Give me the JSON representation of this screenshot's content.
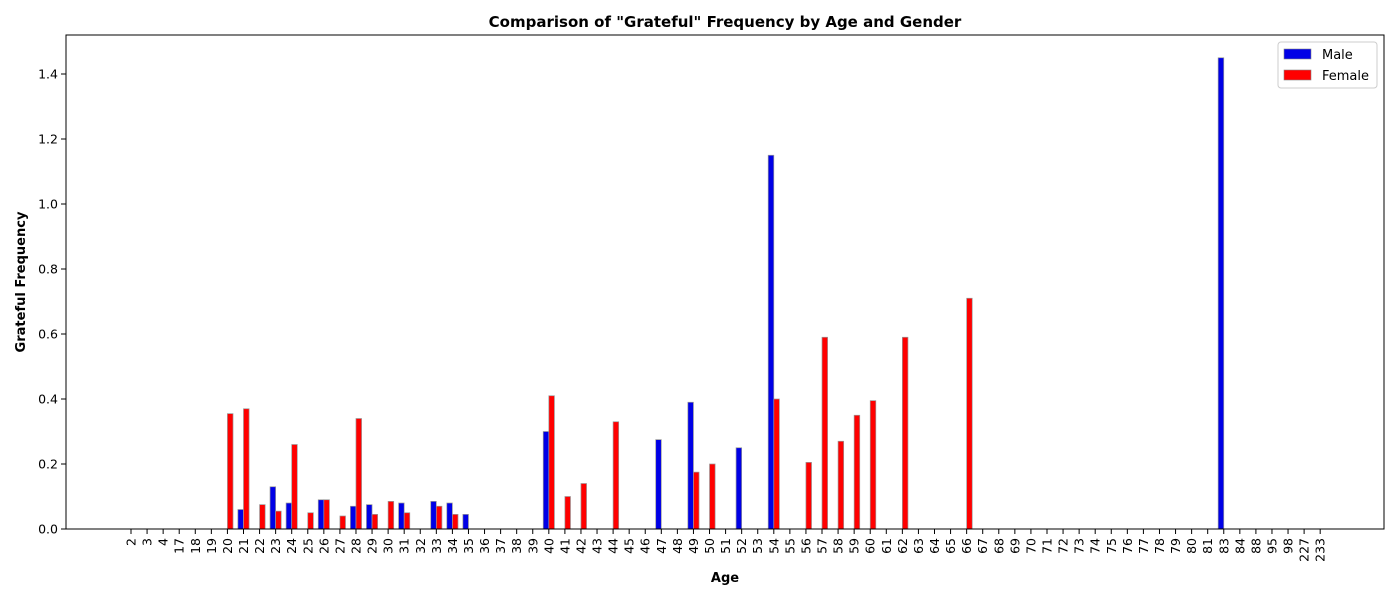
{
  "chart_data": {
    "type": "bar",
    "title": "Comparison of \"Grateful\" Frequency by Age and Gender",
    "xlabel": "Age",
    "ylabel": "Grateful Frequency",
    "ylim": [
      0,
      1.52
    ],
    "yticks": [
      "0.0",
      "0.2",
      "0.4",
      "0.6",
      "0.8",
      "1.0",
      "1.2",
      "1.4"
    ],
    "legend_position": "top-right",
    "grid": false,
    "categories": [
      "2",
      "3",
      "4",
      "17",
      "18",
      "19",
      "20",
      "21",
      "22",
      "23",
      "24",
      "25",
      "26",
      "27",
      "28",
      "29",
      "30",
      "31",
      "32",
      "33",
      "34",
      "35",
      "36",
      "37",
      "38",
      "39",
      "40",
      "41",
      "42",
      "43",
      "44",
      "45",
      "46",
      "47",
      "48",
      "49",
      "50",
      "51",
      "52",
      "53",
      "54",
      "55",
      "56",
      "57",
      "58",
      "59",
      "60",
      "61",
      "62",
      "63",
      "64",
      "65",
      "66",
      "67",
      "68",
      "69",
      "70",
      "71",
      "72",
      "73",
      "74",
      "75",
      "76",
      "77",
      "78",
      "79",
      "80",
      "81",
      "83",
      "84",
      "88",
      "95",
      "98",
      "227",
      "233"
    ],
    "series": [
      {
        "name": "Male",
        "color": "#0000e6",
        "values": [
          0,
          0,
          0,
          0,
          0,
          0,
          0,
          0.06,
          0,
          0.13,
          0.08,
          0,
          0.09,
          0,
          0.07,
          0.075,
          0,
          0.08,
          0,
          0.085,
          0.08,
          0.045,
          0,
          0,
          0,
          0,
          0.3,
          0,
          0,
          0,
          0,
          0,
          0,
          0.275,
          0,
          0.39,
          0,
          0,
          0.25,
          0,
          1.15,
          0,
          0,
          0,
          0,
          0,
          0,
          0,
          0,
          0,
          0,
          0,
          0,
          0,
          0,
          0,
          0,
          0,
          0,
          0,
          0,
          0,
          0,
          0,
          0,
          0,
          0,
          0,
          1.45,
          0,
          0,
          0,
          0,
          0,
          0
        ]
      },
      {
        "name": "Female",
        "color": "#ff0000",
        "values": [
          0,
          0,
          0,
          0,
          0,
          0,
          0.355,
          0.37,
          0.075,
          0.055,
          0.26,
          0.05,
          0.09,
          0.04,
          0.34,
          0.045,
          0.085,
          0.05,
          0,
          0.07,
          0.045,
          0,
          0,
          0,
          0,
          0,
          0.41,
          0.1,
          0.14,
          0,
          0.33,
          0,
          0,
          0,
          0,
          0.175,
          0.2,
          0,
          0,
          0,
          0.4,
          0,
          0.205,
          0.59,
          0.27,
          0.35,
          0.395,
          0,
          0.59,
          0,
          0,
          0,
          0.71,
          0,
          0,
          0,
          0,
          0,
          0,
          0,
          0,
          0,
          0,
          0,
          0,
          0,
          0,
          0,
          0,
          0,
          0,
          0,
          0,
          0,
          0
        ]
      }
    ]
  }
}
